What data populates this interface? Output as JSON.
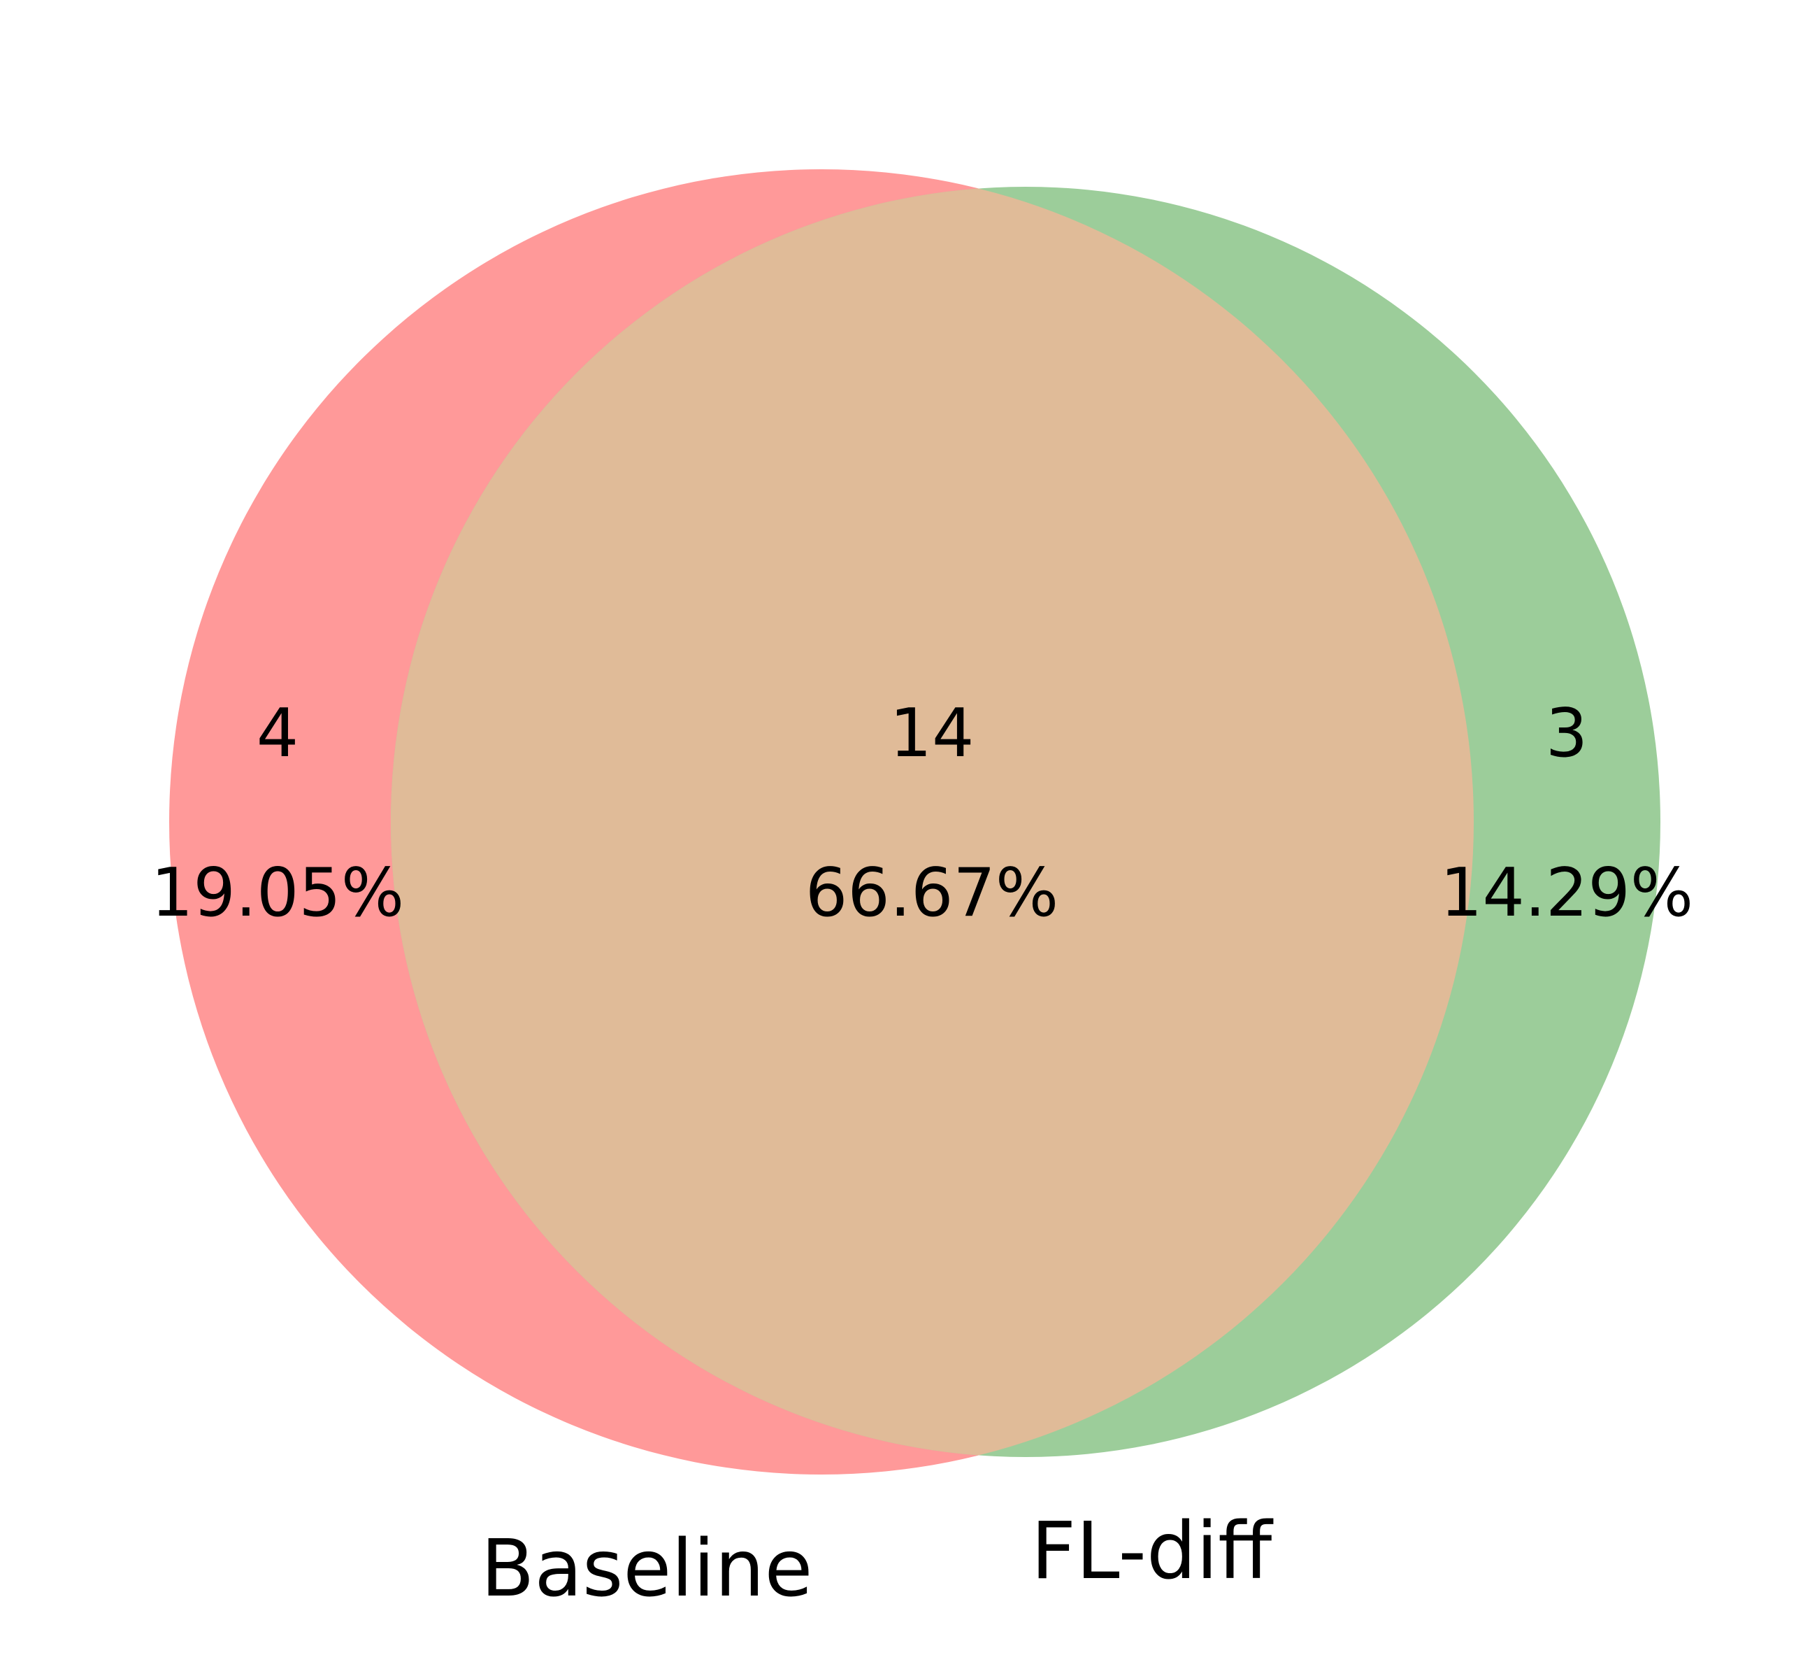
{
  "chart_data": {
    "type": "venn",
    "sets": [
      {
        "name": "Baseline",
        "color": "#ff9999"
      },
      {
        "name": "FL-diff",
        "color": "#9ccd9a"
      }
    ],
    "intersection_color": "#e0bb98",
    "values": [
      4,
      14,
      3
    ],
    "shares": [
      19.05,
      66.67,
      14.29
    ],
    "share_labels": [
      "19.05%",
      "66.67%",
      "14.29%"
    ]
  }
}
